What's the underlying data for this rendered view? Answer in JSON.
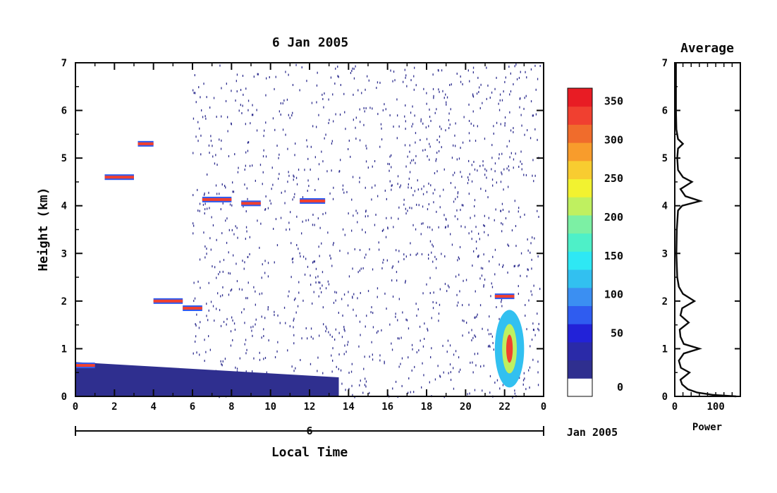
{
  "chart_data": [
    {
      "type": "heatmap",
      "title": "6 Jan 2005",
      "xlabel": "Local Time",
      "ylabel": "Height (km)",
      "x_ticks": [
        "0",
        "2",
        "4",
        "6",
        "8",
        "10",
        "12",
        "14",
        "16",
        "18",
        "20",
        "22",
        "0"
      ],
      "y_ticks": [
        "0",
        "1",
        "2",
        "3",
        "4",
        "5",
        "6",
        "7"
      ],
      "xlim": [
        0,
        24
      ],
      "ylim": [
        0,
        7
      ],
      "date_day": "6",
      "date_month_year": "Jan 2005",
      "colorbar": {
        "ticks": [
          "0",
          "50",
          "100",
          "150",
          "200",
          "250",
          "300",
          "350"
        ],
        "range": [
          0,
          375
        ],
        "colors": [
          "#ffffff",
          "#2f2f8f",
          "#2a2aa8",
          "#2222d8",
          "#2f5cf0",
          "#3b8ff2",
          "#32c0f0",
          "#2ee8f4",
          "#4ef0c8",
          "#7cf0a4",
          "#bff060",
          "#f2f230",
          "#f8cc30",
          "#f89c2c",
          "#f06c2c",
          "#f04030",
          "#e81c24"
        ]
      },
      "layers": [
        {
          "name": "low noise floor",
          "x_range": [
            0,
            13.5
          ],
          "height_km_start": 0.72,
          "height_km_end": 0.4,
          "value": 20
        },
        {
          "name": "echo layer",
          "x_range": [
            0.0,
            1.0
          ],
          "height_km": 0.65,
          "value": 340
        },
        {
          "name": "echo layer",
          "x_range": [
            1.5,
            3.0
          ],
          "height_km": 4.6,
          "value": 340
        },
        {
          "name": "echo layer",
          "x_range": [
            3.2,
            4.0
          ],
          "height_km": 5.3,
          "value": 340
        },
        {
          "name": "echo layer",
          "x_range": [
            4.0,
            5.5
          ],
          "height_km": 2.0,
          "value": 340
        },
        {
          "name": "echo layer",
          "x_range": [
            5.5,
            6.5
          ],
          "height_km": 1.85,
          "value": 340
        },
        {
          "name": "echo layer",
          "x_range": [
            6.5,
            8.0
          ],
          "height_km": 4.13,
          "value": 340
        },
        {
          "name": "echo layer",
          "x_range": [
            8.5,
            9.5
          ],
          "height_km": 4.05,
          "value": 340
        },
        {
          "name": "echo layer",
          "x_range": [
            11.5,
            12.8
          ],
          "height_km": 4.1,
          "value": 340
        },
        {
          "name": "echo layer",
          "x_range": [
            21.5,
            22.5
          ],
          "height_km": 2.1,
          "value": 340
        },
        {
          "name": "convective echo",
          "x_range": [
            21.5,
            23.0
          ],
          "height_km": 1.0,
          "value": 360
        }
      ]
    },
    {
      "type": "line",
      "title": "Average",
      "xlabel": "Power",
      "ylabel": "",
      "x_ticks": [
        "0",
        "100"
      ],
      "y_ticks": [
        "0",
        "1",
        "2",
        "3",
        "4",
        "5",
        "6",
        "7"
      ],
      "xlim": [
        0,
        160
      ],
      "ylim": [
        0,
        7
      ],
      "profile": [
        {
          "h": 0.0,
          "p": 150
        },
        {
          "h": 0.03,
          "p": 95
        },
        {
          "h": 0.08,
          "p": 55
        },
        {
          "h": 0.15,
          "p": 32
        },
        {
          "h": 0.25,
          "p": 18
        },
        {
          "h": 0.35,
          "p": 14
        },
        {
          "h": 0.5,
          "p": 36
        },
        {
          "h": 0.6,
          "p": 15
        },
        {
          "h": 0.75,
          "p": 10
        },
        {
          "h": 0.9,
          "p": 22
        },
        {
          "h": 1.0,
          "p": 60
        },
        {
          "h": 1.1,
          "p": 22
        },
        {
          "h": 1.25,
          "p": 14
        },
        {
          "h": 1.4,
          "p": 12
        },
        {
          "h": 1.55,
          "p": 34
        },
        {
          "h": 1.7,
          "p": 14
        },
        {
          "h": 1.85,
          "p": 18
        },
        {
          "h": 2.0,
          "p": 48
        },
        {
          "h": 2.15,
          "p": 20
        },
        {
          "h": 2.3,
          "p": 10
        },
        {
          "h": 2.5,
          "p": 6
        },
        {
          "h": 3.0,
          "p": 4
        },
        {
          "h": 3.5,
          "p": 5
        },
        {
          "h": 3.9,
          "p": 8
        },
        {
          "h": 4.0,
          "p": 18
        },
        {
          "h": 4.1,
          "p": 62
        },
        {
          "h": 4.2,
          "p": 26
        },
        {
          "h": 4.35,
          "p": 14
        },
        {
          "h": 4.5,
          "p": 42
        },
        {
          "h": 4.6,
          "p": 20
        },
        {
          "h": 4.75,
          "p": 8
        },
        {
          "h": 5.0,
          "p": 6
        },
        {
          "h": 5.2,
          "p": 8
        },
        {
          "h": 5.3,
          "p": 20
        },
        {
          "h": 5.4,
          "p": 8
        },
        {
          "h": 5.6,
          "p": 4
        },
        {
          "h": 6.0,
          "p": 3
        },
        {
          "h": 7.0,
          "p": 3
        }
      ]
    }
  ]
}
